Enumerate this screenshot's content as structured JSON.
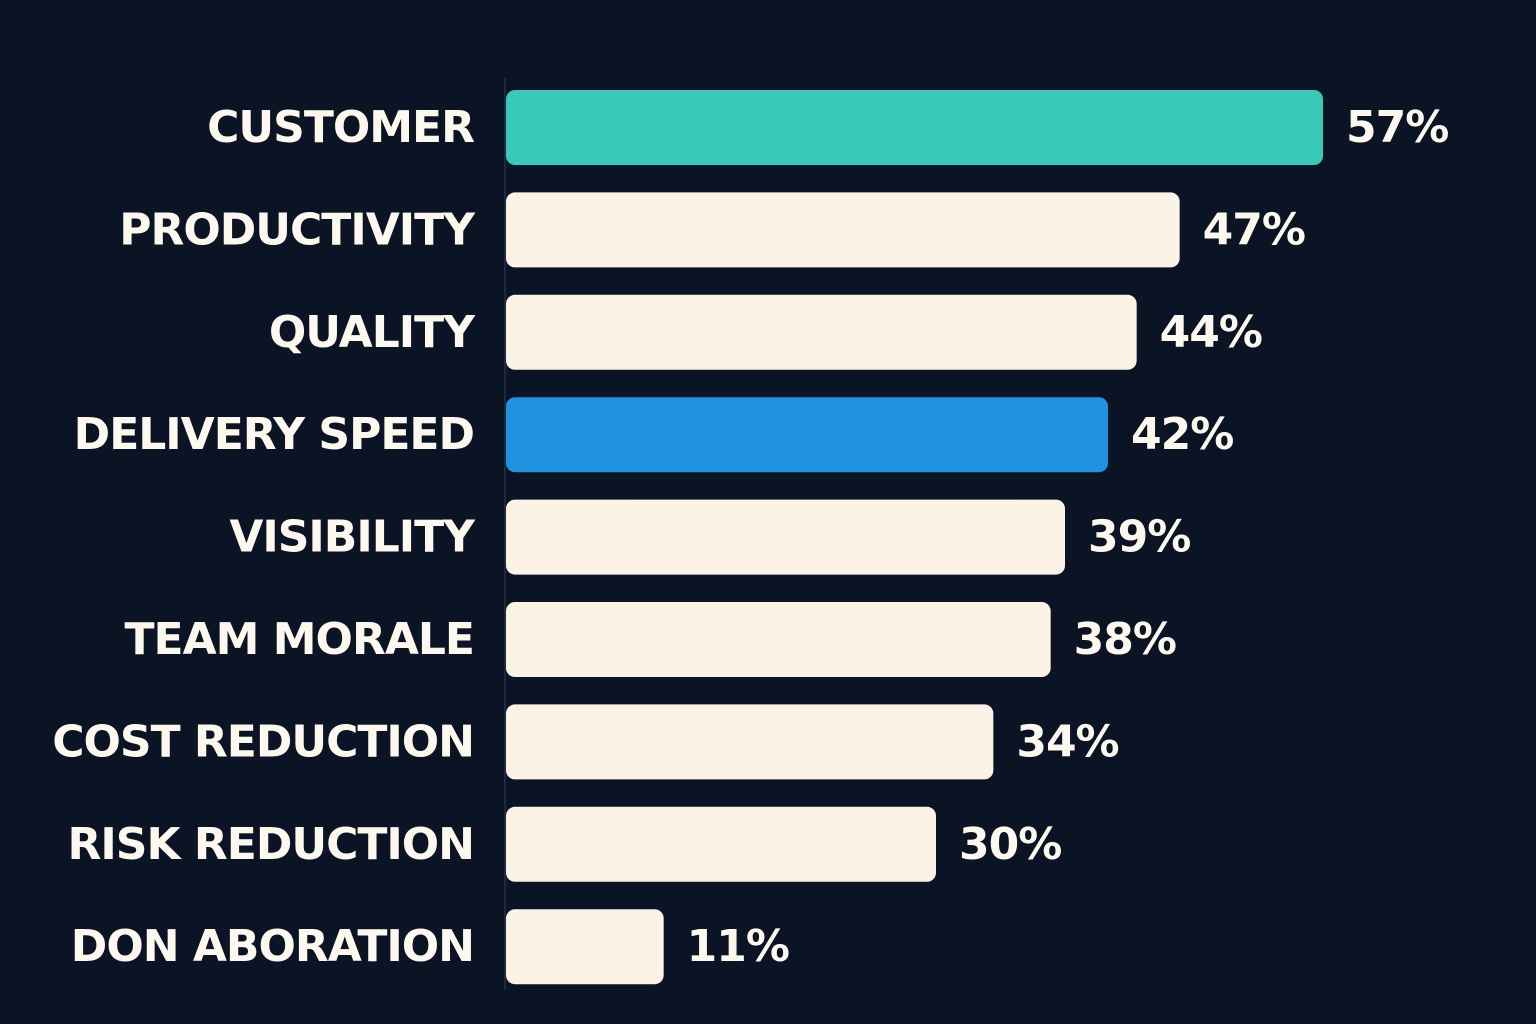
{
  "chart_data": {
    "type": "bar",
    "orientation": "horizontal",
    "categories": [
      "CUSTOMER",
      "PRODUCTIVITY",
      "QUALITY",
      "DELIVERY SPEED",
      "VISIBILITY",
      "TEAM MORALE",
      "COST REDUCTION",
      "RISK REDUCTION",
      "DON ABORATION"
    ],
    "values": [
      57,
      47,
      44,
      42,
      39,
      38,
      34,
      30,
      11
    ],
    "value_labels": [
      "57%",
      "47%",
      "44%",
      "42%",
      "39%",
      "38%",
      "34%",
      "30%",
      "11%"
    ],
    "bar_colors": [
      "#38c9b8",
      "#fbf3e6",
      "#fbf3e6",
      "#2092e2",
      "#fbf3e6",
      "#fbf3e6",
      "#fbf3e6",
      "#fbf3e6",
      "#fbf3e6"
    ],
    "title": "",
    "xlabel": "",
    "ylabel": "",
    "xlim": [
      0,
      57
    ],
    "grid": false,
    "legend": "none"
  },
  "colors": {
    "background": "#0b1424",
    "text": "#fdf8ee",
    "axis": "#1e2a3c"
  }
}
